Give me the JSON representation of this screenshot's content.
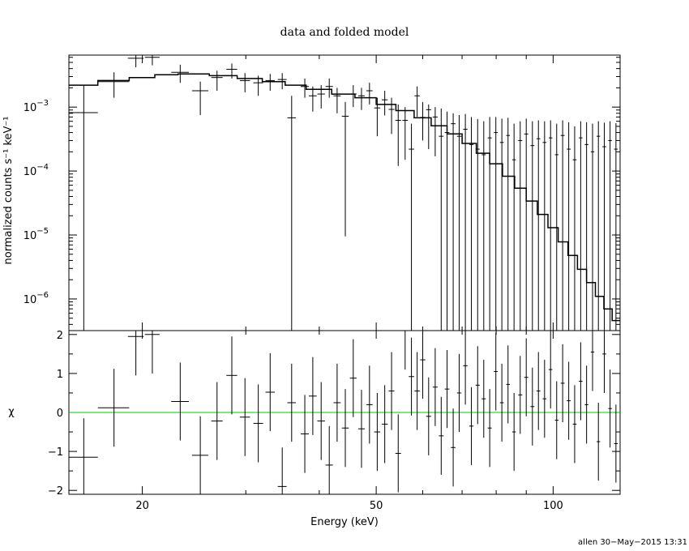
{
  "chart_data": [
    {
      "panel": "top",
      "type": "scatter",
      "title": "data and folded model",
      "xlabel": "",
      "ylabel": "normalized counts s⁻¹ keV⁻¹",
      "xscale": "log",
      "yscale": "log",
      "xlim": [
        15,
        130
      ],
      "ylim": [
        3.2e-07,
        0.0065
      ],
      "ytick_labels": [
        {
          "base": "10",
          "exp": "−3",
          "value": 0.001
        },
        {
          "base": "10",
          "exp": "−4",
          "value": 0.0001
        },
        {
          "base": "10",
          "exp": "−5",
          "value": 1e-05
        },
        {
          "base": "10",
          "exp": "−6",
          "value": 1e-06
        }
      ],
      "data_points": [
        {
          "x": 15.9,
          "xerr": 0.9,
          "y": 0.00082,
          "ylo": 3.2e-07,
          "yhi": 0.0022
        },
        {
          "x": 17.9,
          "xerr": 1.1,
          "y": 0.0025,
          "ylo": 0.0014,
          "yhi": 0.0035
        },
        {
          "x": 19.5,
          "xerr": 0.6,
          "y": 0.0058,
          "ylo": 0.0042,
          "yhi": 0.0065
        },
        {
          "x": 20.8,
          "xerr": 0.6,
          "y": 0.006,
          "ylo": 0.0045,
          "yhi": 0.0065
        },
        {
          "x": 23.2,
          "xerr": 0.8,
          "y": 0.0035,
          "ylo": 0.0024,
          "yhi": 0.0046
        },
        {
          "x": 25.1,
          "xerr": 0.8,
          "y": 0.0018,
          "ylo": 0.00075,
          "yhi": 0.0025
        },
        {
          "x": 26.8,
          "xerr": 0.6,
          "y": 0.0029,
          "ylo": 0.0018,
          "yhi": 0.0037
        },
        {
          "x": 28.4,
          "xerr": 0.6,
          "y": 0.0039,
          "ylo": 0.0028,
          "yhi": 0.0048
        },
        {
          "x": 29.9,
          "xerr": 0.6,
          "y": 0.0026,
          "ylo": 0.0017,
          "yhi": 0.0034
        },
        {
          "x": 31.5,
          "xerr": 0.6,
          "y": 0.0024,
          "ylo": 0.0015,
          "yhi": 0.0031
        },
        {
          "x": 33.0,
          "xerr": 0.6,
          "y": 0.0026,
          "ylo": 0.0018,
          "yhi": 0.0033
        },
        {
          "x": 34.6,
          "xerr": 0.6,
          "y": 0.0027,
          "ylo": 0.0019,
          "yhi": 0.0034
        },
        {
          "x": 35.9,
          "xerr": 0.6,
          "y": 0.00068,
          "ylo": 3.2e-07,
          "yhi": 0.0015
        },
        {
          "x": 37.8,
          "xerr": 0.6,
          "y": 0.0021,
          "ylo": 0.0014,
          "yhi": 0.0028
        },
        {
          "x": 39.0,
          "xerr": 0.6,
          "y": 0.0015,
          "ylo": 0.00085,
          "yhi": 0.0021
        },
        {
          "x": 40.3,
          "xerr": 0.6,
          "y": 0.0016,
          "ylo": 0.00095,
          "yhi": 0.0022
        },
        {
          "x": 41.6,
          "xerr": 0.6,
          "y": 0.0021,
          "ylo": 0.0014,
          "yhi": 0.0028
        },
        {
          "x": 42.9,
          "xerr": 0.6,
          "y": 0.0015,
          "ylo": 0.0008,
          "yhi": 0.002
        },
        {
          "x": 44.3,
          "xerr": 0.6,
          "y": 0.00072,
          "ylo": 9.5e-06,
          "yhi": 0.0012
        },
        {
          "x": 45.7,
          "xerr": 0.6,
          "y": 0.0016,
          "ylo": 0.001,
          "yhi": 0.0022
        },
        {
          "x": 47.2,
          "xerr": 0.6,
          "y": 0.0015,
          "ylo": 0.0009,
          "yhi": 0.002
        },
        {
          "x": 48.7,
          "xerr": 0.6,
          "y": 0.0018,
          "ylo": 0.0011,
          "yhi": 0.0024
        },
        {
          "x": 50.2,
          "xerr": 0.6,
          "y": 0.00097,
          "ylo": 0.00035,
          "yhi": 0.0014
        },
        {
          "x": 51.7,
          "xerr": 0.6,
          "y": 0.0013,
          "ylo": 0.00074,
          "yhi": 0.0018
        },
        {
          "x": 53.1,
          "xerr": 0.6,
          "y": 0.00092,
          "ylo": 0.00038,
          "yhi": 0.0014
        },
        {
          "x": 54.5,
          "xerr": 0.6,
          "y": 0.00062,
          "ylo": 0.00012,
          "yhi": 0.0011
        },
        {
          "x": 56.0,
          "xerr": 0.6,
          "y": 0.00062,
          "ylo": 0.00015,
          "yhi": 0.001
        },
        {
          "x": 57.4,
          "xerr": 0.6,
          "y": 0.00022,
          "ylo": 3.2e-07,
          "yhi": 0.00055
        },
        {
          "x": 58.7,
          "xerr": 0.6,
          "y": 0.0015,
          "ylo": 0.0007,
          "yhi": 0.0021
        },
        {
          "x": 60.0,
          "xerr": 0.6,
          "y": 0.00069,
          "ylo": 0.0003,
          "yhi": 0.0012
        },
        {
          "x": 61.4,
          "xerr": 0.6,
          "y": 0.00091,
          "ylo": 0.00022,
          "yhi": 0.0011
        },
        {
          "x": 63.0,
          "xerr": 0.6,
          "y": 0.0007,
          "ylo": 0.00017,
          "yhi": 0.001
        },
        {
          "x": 64.5,
          "xerr": 0.6,
          "y": 0.00035,
          "ylo": 3.2e-07,
          "yhi": 0.00095
        },
        {
          "x": 66.0,
          "xerr": 0.6,
          "y": 0.0004,
          "ylo": 3.2e-07,
          "yhi": 0.00085
        },
        {
          "x": 67.6,
          "xerr": 0.6,
          "y": 0.00055,
          "ylo": 3.2e-07,
          "yhi": 0.0008
        },
        {
          "x": 69.2,
          "xerr": 0.6,
          "y": 0.00035,
          "ylo": 3.2e-07,
          "yhi": 0.00075
        },
        {
          "x": 70.9,
          "xerr": 0.6,
          "y": 0.00045,
          "ylo": 3.2e-07,
          "yhi": 0.00078
        },
        {
          "x": 72.6,
          "xerr": 0.6,
          "y": 0.00026,
          "ylo": 3.2e-07,
          "yhi": 0.0007
        },
        {
          "x": 74.4,
          "xerr": 0.6,
          "y": 0.00022,
          "ylo": 3.2e-07,
          "yhi": 0.00065
        },
        {
          "x": 76.2,
          "xerr": 0.6,
          "y": 0.00018,
          "ylo": 3.2e-07,
          "yhi": 0.0006
        },
        {
          "x": 78.0,
          "xerr": 0.6,
          "y": 0.00033,
          "ylo": 3.2e-07,
          "yhi": 0.0007
        },
        {
          "x": 79.9,
          "xerr": 0.6,
          "y": 0.0004,
          "ylo": 3.2e-07,
          "yhi": 0.0007
        },
        {
          "x": 81.8,
          "xerr": 0.6,
          "y": 0.00028,
          "ylo": 3.2e-07,
          "yhi": 0.00066
        },
        {
          "x": 83.8,
          "xerr": 0.6,
          "y": 0.00036,
          "ylo": 3.2e-07,
          "yhi": 0.00068
        },
        {
          "x": 85.8,
          "xerr": 0.6,
          "y": 0.00015,
          "ylo": 3.2e-07,
          "yhi": 0.00055
        },
        {
          "x": 87.9,
          "xerr": 0.7,
          "y": 0.0003,
          "ylo": 3.2e-07,
          "yhi": 0.0006
        },
        {
          "x": 90.0,
          "xerr": 0.7,
          "y": 0.00038,
          "ylo": 3.2e-07,
          "yhi": 0.00066
        },
        {
          "x": 92.2,
          "xerr": 0.7,
          "y": 0.00025,
          "ylo": 3.2e-07,
          "yhi": 0.0006
        },
        {
          "x": 94.4,
          "xerr": 0.7,
          "y": 0.00032,
          "ylo": 3.2e-07,
          "yhi": 0.00062
        },
        {
          "x": 96.7,
          "xerr": 0.7,
          "y": 0.00028,
          "ylo": 3.2e-07,
          "yhi": 0.0006
        },
        {
          "x": 99.0,
          "xerr": 0.7,
          "y": 0.00033,
          "ylo": 3.2e-07,
          "yhi": 0.00062
        },
        {
          "x": 101.4,
          "xerr": 0.7,
          "y": 0.00018,
          "ylo": 3.2e-07,
          "yhi": 0.00055
        },
        {
          "x": 103.8,
          "xerr": 0.8,
          "y": 0.00036,
          "ylo": 3.2e-07,
          "yhi": 0.00062
        },
        {
          "x": 106.3,
          "xerr": 0.8,
          "y": 0.00022,
          "ylo": 3.2e-07,
          "yhi": 0.00058
        },
        {
          "x": 108.8,
          "xerr": 0.8,
          "y": 0.00015,
          "ylo": 3.2e-07,
          "yhi": 0.0005
        },
        {
          "x": 111.4,
          "xerr": 0.8,
          "y": 0.00033,
          "ylo": 3.2e-07,
          "yhi": 0.0006
        },
        {
          "x": 114.0,
          "xerr": 0.8,
          "y": 0.00026,
          "ylo": 3.2e-07,
          "yhi": 0.00058
        },
        {
          "x": 116.7,
          "xerr": 0.8,
          "y": 0.0002,
          "ylo": 3.2e-07,
          "yhi": 0.00055
        },
        {
          "x": 119.4,
          "xerr": 0.8,
          "y": 0.00035,
          "ylo": 3.2e-07,
          "yhi": 0.0006
        },
        {
          "x": 122.2,
          "xerr": 0.9,
          "y": 0.00024,
          "ylo": 3.2e-07,
          "yhi": 0.00057
        },
        {
          "x": 125.0,
          "xerr": 0.9,
          "y": 0.0003,
          "ylo": 3.2e-07,
          "yhi": 0.0006
        },
        {
          "x": 127.9,
          "xerr": 0.9,
          "y": 0.00022,
          "ylo": 3.2e-07,
          "yhi": 0.00056
        }
      ],
      "model": {
        "x": [
          15,
          16.8,
          19,
          21,
          23,
          26,
          29,
          32,
          35,
          38,
          42,
          46,
          50,
          54,
          58,
          62,
          66,
          70,
          74,
          78,
          82,
          86,
          90,
          94,
          98,
          102,
          106,
          110,
          114,
          118,
          122,
          126,
          130
        ],
        "y": [
          0.0022,
          0.0026,
          0.0029,
          0.0032,
          0.0033,
          0.0031,
          0.0028,
          0.0025,
          0.0022,
          0.0019,
          0.0016,
          0.0014,
          0.0011,
          0.00088,
          0.00068,
          0.00051,
          0.00038,
          0.00027,
          0.00019,
          0.00013,
          8.3e-05,
          5.4e-05,
          3.4e-05,
          2.1e-05,
          1.3e-05,
          7.8e-06,
          4.8e-06,
          2.9e-06,
          1.8e-06,
          1.1e-06,
          7e-07,
          4.6e-07,
          3.3e-07
        ]
      }
    },
    {
      "panel": "bottom",
      "type": "scatter",
      "xlabel": "Energy (keV)",
      "ylabel": "χ",
      "xscale": "log",
      "xlim": [
        15,
        130
      ],
      "ylim": [
        -2.1,
        2.1
      ],
      "xticks": [
        20,
        50,
        100
      ],
      "xtick_labels": [
        "20",
        "50",
        "100"
      ],
      "yticks": [
        -2,
        -1,
        0,
        1,
        2
      ],
      "ytick_labels": [
        "−2",
        "−1",
        "0",
        "1",
        "2"
      ],
      "zero_line_color": "#00cc00",
      "residuals": [
        {
          "x": 15.9,
          "xerr": 0.9,
          "y": -1.15
        },
        {
          "x": 17.9,
          "xerr": 1.1,
          "y": 0.12
        },
        {
          "x": 19.5,
          "xerr": 0.6,
          "y": 1.95
        },
        {
          "x": 20.8,
          "xerr": 0.6,
          "y": 2.0
        },
        {
          "x": 23.2,
          "xerr": 0.8,
          "y": 0.28
        },
        {
          "x": 25.1,
          "xerr": 0.8,
          "y": -1.1
        },
        {
          "x": 26.8,
          "xerr": 0.6,
          "y": -0.22
        },
        {
          "x": 28.4,
          "xerr": 0.6,
          "y": 0.95
        },
        {
          "x": 29.9,
          "xerr": 0.6,
          "y": -0.12
        },
        {
          "x": 31.5,
          "xerr": 0.6,
          "y": -0.28
        },
        {
          "x": 33.0,
          "xerr": 0.6,
          "y": 0.52
        },
        {
          "x": 34.6,
          "xerr": 0.6,
          "y": -1.9
        },
        {
          "x": 35.9,
          "xerr": 0.6,
          "y": 0.25
        },
        {
          "x": 37.8,
          "xerr": 0.6,
          "y": -0.55
        },
        {
          "x": 39.0,
          "xerr": 0.6,
          "y": 0.42
        },
        {
          "x": 40.3,
          "xerr": 0.6,
          "y": -0.22
        },
        {
          "x": 41.6,
          "xerr": 0.6,
          "y": -1.35
        },
        {
          "x": 42.9,
          "xerr": 0.6,
          "y": 0.25
        },
        {
          "x": 44.3,
          "xerr": 0.6,
          "y": -0.4
        },
        {
          "x": 45.7,
          "xerr": 0.6,
          "y": 0.88
        },
        {
          "x": 47.2,
          "xerr": 0.6,
          "y": -0.42
        },
        {
          "x": 48.7,
          "xerr": 0.6,
          "y": 0.2
        },
        {
          "x": 50.2,
          "xerr": 0.6,
          "y": -0.5
        },
        {
          "x": 51.7,
          "xerr": 0.6,
          "y": -0.3
        },
        {
          "x": 53.1,
          "xerr": 0.6,
          "y": 0.55
        },
        {
          "x": 54.5,
          "xerr": 0.6,
          "y": -1.05
        },
        {
          "x": 56.0,
          "xerr": 0.6,
          "y": 2.1
        },
        {
          "x": 57.4,
          "xerr": 0.6,
          "y": 0.92
        },
        {
          "x": 58.7,
          "xerr": 0.6,
          "y": 0.55
        },
        {
          "x": 60.0,
          "xerr": 0.6,
          "y": 1.35
        },
        {
          "x": 61.4,
          "xerr": 0.6,
          "y": -0.1
        },
        {
          "x": 63.0,
          "xerr": 0.6,
          "y": 0.65
        },
        {
          "x": 64.5,
          "xerr": 0.6,
          "y": -0.6
        },
        {
          "x": 66.0,
          "xerr": 0.6,
          "y": 0.6
        },
        {
          "x": 67.6,
          "xerr": 0.6,
          "y": -0.9
        },
        {
          "x": 69.2,
          "xerr": 0.6,
          "y": 0.5
        },
        {
          "x": 70.9,
          "xerr": 0.6,
          "y": 1.2
        },
        {
          "x": 72.6,
          "xerr": 0.6,
          "y": -0.35
        },
        {
          "x": 74.4,
          "xerr": 0.6,
          "y": 0.7
        },
        {
          "x": 76.2,
          "xerr": 0.6,
          "y": 0.35
        },
        {
          "x": 78.0,
          "xerr": 0.6,
          "y": -0.4
        },
        {
          "x": 79.9,
          "xerr": 0.6,
          "y": 1.05
        },
        {
          "x": 81.8,
          "xerr": 0.6,
          "y": 0.25
        },
        {
          "x": 83.8,
          "xerr": 0.6,
          "y": 0.72
        },
        {
          "x": 85.8,
          "xerr": 0.6,
          "y": -0.5
        },
        {
          "x": 87.9,
          "xerr": 0.7,
          "y": 0.45
        },
        {
          "x": 90.0,
          "xerr": 0.7,
          "y": 0.9
        },
        {
          "x": 92.2,
          "xerr": 0.7,
          "y": 0.15
        },
        {
          "x": 94.4,
          "xerr": 0.7,
          "y": 0.55
        },
        {
          "x": 96.7,
          "xerr": 0.7,
          "y": 0.35
        },
        {
          "x": 99.0,
          "xerr": 0.7,
          "y": 1.1
        },
        {
          "x": 101.4,
          "xerr": 0.7,
          "y": -0.2
        },
        {
          "x": 103.8,
          "xerr": 0.8,
          "y": 0.75
        },
        {
          "x": 106.3,
          "xerr": 0.8,
          "y": 0.3
        },
        {
          "x": 108.8,
          "xerr": 0.8,
          "y": -0.3
        },
        {
          "x": 111.4,
          "xerr": 0.8,
          "y": 0.8
        },
        {
          "x": 114.0,
          "xerr": 0.8,
          "y": 0.2
        },
        {
          "x": 116.7,
          "xerr": 0.8,
          "y": 1.55
        },
        {
          "x": 119.4,
          "xerr": 0.8,
          "y": -0.75
        },
        {
          "x": 122.2,
          "xerr": 0.9,
          "y": 1.5
        },
        {
          "x": 125.0,
          "xerr": 0.9,
          "y": 0.1
        },
        {
          "x": 127.9,
          "xerr": 0.9,
          "y": -0.8
        }
      ]
    }
  ],
  "footer": "allen 30−May−2015 13:31"
}
